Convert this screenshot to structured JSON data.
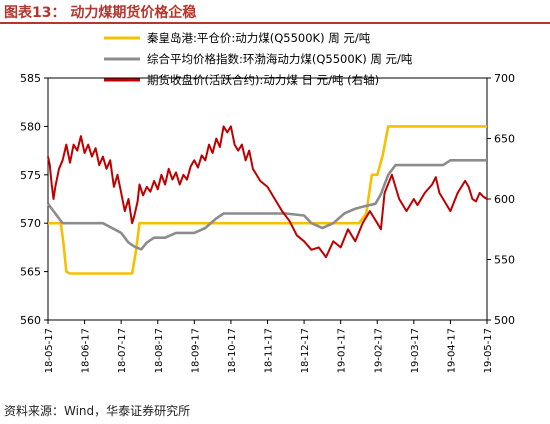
{
  "header": {
    "title": "图表13：  动力煤期货价格企稳"
  },
  "footer": {
    "source": "资料来源：Wind，华泰证券研究所"
  },
  "chart_data": {
    "type": "line",
    "x_ticks": [
      "18-05-17",
      "18-06-17",
      "18-07-17",
      "18-08-17",
      "18-09-17",
      "18-10-17",
      "18-11-17",
      "18-12-17",
      "19-01-17",
      "19-02-17",
      "19-03-17",
      "19-04-17",
      "19-05-17"
    ],
    "left_axis": {
      "ylim": [
        560,
        585
      ],
      "ticks": [
        560,
        565,
        570,
        575,
        580,
        585
      ]
    },
    "right_axis": {
      "ylim": [
        500,
        700
      ],
      "ticks": [
        500,
        550,
        600,
        650,
        700
      ]
    },
    "legend": "top-right",
    "series": [
      {
        "name": "秦皇岛港:平仓价:动力煤(Q5500K) 周 元/吨",
        "axis": "left",
        "color": "#f5c000",
        "points": [
          [
            0.0,
            570
          ],
          [
            0.35,
            570
          ],
          [
            0.42,
            568
          ],
          [
            0.5,
            565
          ],
          [
            0.6,
            564.8
          ],
          [
            1.0,
            564.8
          ],
          [
            1.5,
            564.8
          ],
          [
            2.0,
            564.8
          ],
          [
            2.3,
            564.8
          ],
          [
            2.4,
            567
          ],
          [
            2.5,
            570
          ],
          [
            3.0,
            570
          ],
          [
            4.0,
            570
          ],
          [
            5.0,
            570
          ],
          [
            6.0,
            570
          ],
          [
            7.0,
            570
          ],
          [
            8.0,
            570
          ],
          [
            8.5,
            570
          ],
          [
            8.7,
            571
          ],
          [
            8.85,
            575
          ],
          [
            9.0,
            575
          ],
          [
            9.15,
            577
          ],
          [
            9.3,
            580
          ],
          [
            10.0,
            580
          ],
          [
            11.0,
            580
          ],
          [
            12.0,
            580
          ]
        ]
      },
      {
        "name": "综合平均价格指数:环渤海动力煤(Q5500K) 周 元/吨",
        "axis": "left",
        "color": "#8c8c8c",
        "points": [
          [
            0.0,
            572
          ],
          [
            0.2,
            571
          ],
          [
            0.4,
            570
          ],
          [
            1.0,
            570
          ],
          [
            1.5,
            570
          ],
          [
            2.0,
            569
          ],
          [
            2.2,
            568
          ],
          [
            2.4,
            567.5
          ],
          [
            2.55,
            567.3
          ],
          [
            2.7,
            568
          ],
          [
            2.9,
            568.5
          ],
          [
            3.2,
            568.5
          ],
          [
            3.5,
            569
          ],
          [
            3.8,
            569
          ],
          [
            4.0,
            569
          ],
          [
            4.3,
            569.5
          ],
          [
            4.6,
            570.5
          ],
          [
            4.8,
            571
          ],
          [
            5.2,
            571
          ],
          [
            5.6,
            571
          ],
          [
            6.0,
            571
          ],
          [
            6.5,
            571
          ],
          [
            7.0,
            570.8
          ],
          [
            7.2,
            570
          ],
          [
            7.5,
            569.5
          ],
          [
            7.8,
            570
          ],
          [
            8.1,
            571
          ],
          [
            8.4,
            571.5
          ],
          [
            8.7,
            571.8
          ],
          [
            8.95,
            572
          ],
          [
            9.1,
            573
          ],
          [
            9.3,
            575
          ],
          [
            9.5,
            576
          ],
          [
            10.0,
            576
          ],
          [
            10.4,
            576
          ],
          [
            10.8,
            576
          ],
          [
            11.0,
            576.5
          ],
          [
            11.3,
            576.5
          ],
          [
            12.0,
            576.5
          ]
        ]
      },
      {
        "name": "期货收盘价(活跃合约):动力煤 日 元/吨 (右轴)",
        "axis": "right",
        "color": "#c00000",
        "points": [
          [
            0.0,
            635
          ],
          [
            0.05,
            628
          ],
          [
            0.1,
            612
          ],
          [
            0.15,
            600
          ],
          [
            0.2,
            610
          ],
          [
            0.3,
            625
          ],
          [
            0.4,
            632
          ],
          [
            0.5,
            645
          ],
          [
            0.6,
            630
          ],
          [
            0.7,
            645
          ],
          [
            0.8,
            640
          ],
          [
            0.9,
            652
          ],
          [
            1.0,
            638
          ],
          [
            1.1,
            645
          ],
          [
            1.2,
            635
          ],
          [
            1.3,
            642
          ],
          [
            1.4,
            628
          ],
          [
            1.5,
            635
          ],
          [
            1.6,
            625
          ],
          [
            1.7,
            632
          ],
          [
            1.8,
            610
          ],
          [
            1.9,
            620
          ],
          [
            2.0,
            605
          ],
          [
            2.1,
            590
          ],
          [
            2.2,
            600
          ],
          [
            2.3,
            580
          ],
          [
            2.35,
            585
          ],
          [
            2.45,
            598
          ],
          [
            2.5,
            612
          ],
          [
            2.6,
            603
          ],
          [
            2.7,
            610
          ],
          [
            2.8,
            606
          ],
          [
            2.9,
            615
          ],
          [
            3.0,
            608
          ],
          [
            3.1,
            620
          ],
          [
            3.2,
            612
          ],
          [
            3.3,
            625
          ],
          [
            3.4,
            616
          ],
          [
            3.5,
            622
          ],
          [
            3.6,
            612
          ],
          [
            3.7,
            620
          ],
          [
            3.8,
            616
          ],
          [
            3.9,
            627
          ],
          [
            4.0,
            632
          ],
          [
            4.1,
            626
          ],
          [
            4.2,
            636
          ],
          [
            4.3,
            632
          ],
          [
            4.4,
            645
          ],
          [
            4.5,
            638
          ],
          [
            4.6,
            650
          ],
          [
            4.7,
            643
          ],
          [
            4.8,
            660
          ],
          [
            4.9,
            655
          ],
          [
            5.0,
            660
          ],
          [
            5.1,
            645
          ],
          [
            5.2,
            640
          ],
          [
            5.3,
            645
          ],
          [
            5.4,
            632
          ],
          [
            5.5,
            640
          ],
          [
            5.6,
            625
          ],
          [
            5.8,
            615
          ],
          [
            6.0,
            610
          ],
          [
            6.2,
            600
          ],
          [
            6.4,
            590
          ],
          [
            6.6,
            582
          ],
          [
            6.8,
            570
          ],
          [
            7.0,
            565
          ],
          [
            7.2,
            558
          ],
          [
            7.4,
            560
          ],
          [
            7.6,
            552
          ],
          [
            7.8,
            565
          ],
          [
            8.0,
            560
          ],
          [
            8.2,
            575
          ],
          [
            8.4,
            565
          ],
          [
            8.6,
            580
          ],
          [
            8.8,
            590
          ],
          [
            9.0,
            580
          ],
          [
            9.1,
            575
          ],
          [
            9.2,
            605
          ],
          [
            9.4,
            620
          ],
          [
            9.5,
            610
          ],
          [
            9.6,
            600
          ],
          [
            9.8,
            590
          ],
          [
            10.0,
            600
          ],
          [
            10.1,
            595
          ],
          [
            10.3,
            605
          ],
          [
            10.5,
            612
          ],
          [
            10.6,
            618
          ],
          [
            10.7,
            605
          ],
          [
            10.8,
            600
          ],
          [
            11.0,
            590
          ],
          [
            11.2,
            605
          ],
          [
            11.4,
            615
          ],
          [
            11.5,
            610
          ],
          [
            11.6,
            600
          ],
          [
            11.7,
            598
          ],
          [
            11.8,
            605
          ],
          [
            11.9,
            602
          ],
          [
            12.0,
            600
          ]
        ]
      }
    ]
  }
}
